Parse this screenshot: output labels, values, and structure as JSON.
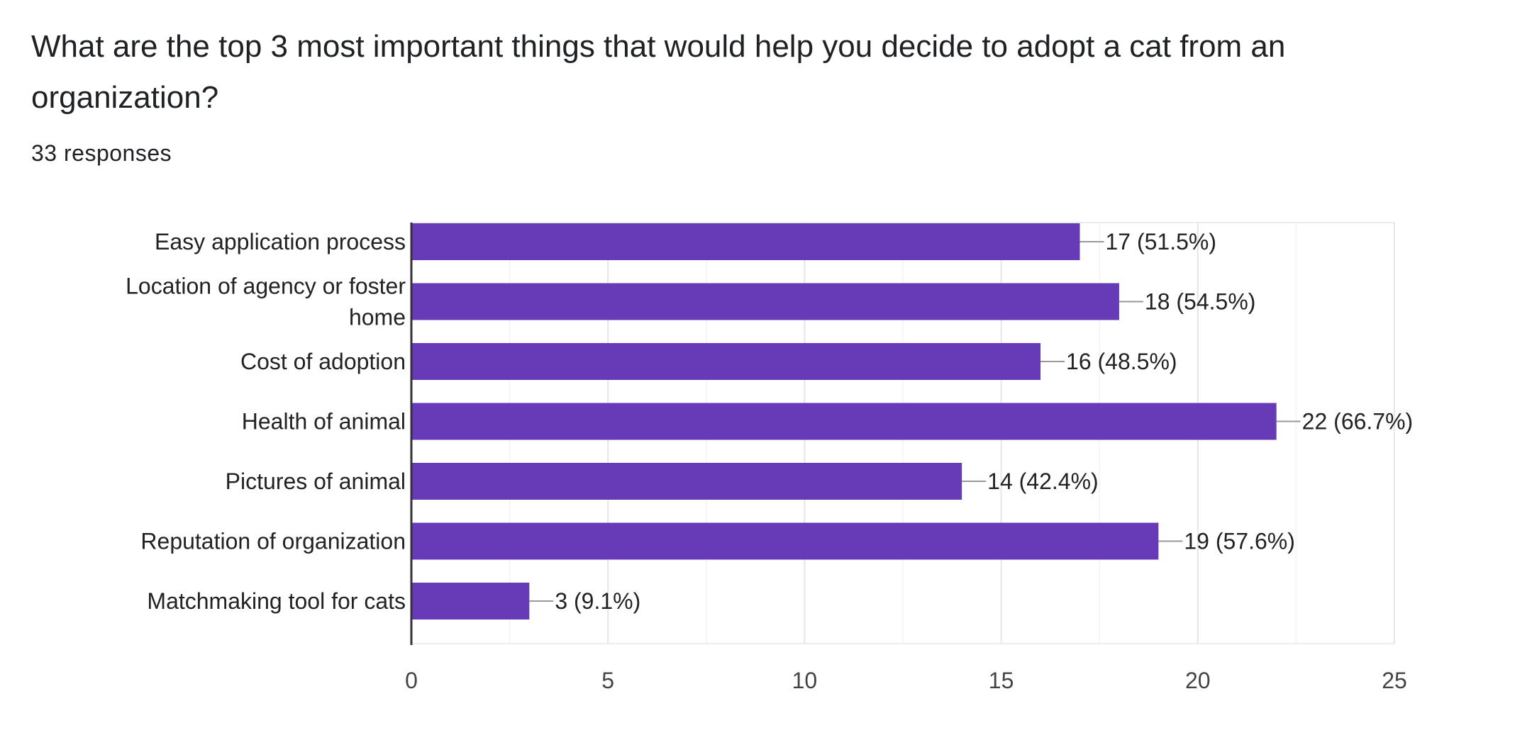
{
  "question": {
    "title": "What are the top 3 most important things that would help you decide to adopt a cat from an organization?",
    "responses": "33 responses"
  },
  "colors": {
    "bar": "#673ab7",
    "grid": "#ececec",
    "axis": "#333333",
    "leader": "#999999"
  },
  "chart_data": {
    "type": "bar",
    "orientation": "horizontal",
    "categories": [
      "Easy application process",
      "Location of agency or foster home",
      "Cost of adoption",
      "Health of animal",
      "Pictures of animal",
      "Reputation of organization",
      "Matchmaking tool for cats"
    ],
    "values": [
      17,
      18,
      16,
      22,
      14,
      19,
      3
    ],
    "value_labels": [
      "17 (51.5%)",
      "18 (54.5%)",
      "16 (48.5%)",
      "22 (66.7%)",
      "14 (42.4%)",
      "19 (57.6%)",
      "3 (9.1%)"
    ],
    "xlim": [
      0,
      25
    ],
    "xticks": [
      0,
      5,
      10,
      15,
      20,
      25
    ],
    "grid": true,
    "title": "",
    "xlabel": "",
    "ylabel": ""
  }
}
